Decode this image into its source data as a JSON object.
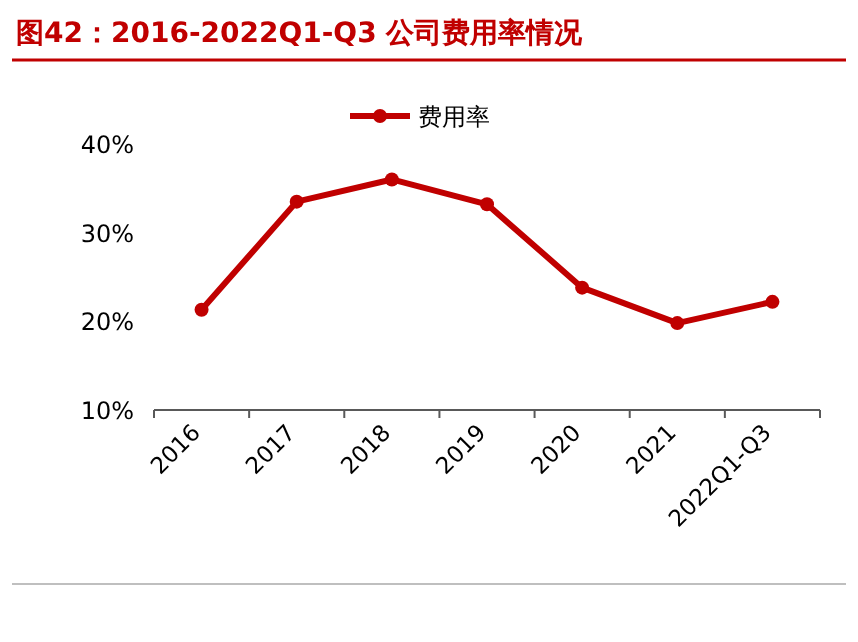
{
  "chart_data": {
    "type": "line",
    "title": "图42：2016-2022Q1-Q3 公司费用率情况",
    "categories": [
      "2016",
      "2017",
      "2018",
      "2019",
      "2020",
      "2021",
      "2022Q1-Q3"
    ],
    "series": [
      {
        "name": "费用率",
        "color": "#c00000",
        "values": [
          21.3,
          33.5,
          36.0,
          33.2,
          23.8,
          19.8,
          22.2
        ]
      }
    ],
    "ylim": [
      10,
      40
    ],
    "yticks": [
      {
        "value": 10,
        "label": "10%"
      },
      {
        "value": 20,
        "label": "20%"
      },
      {
        "value": 30,
        "label": "30%"
      },
      {
        "value": 40,
        "label": "40%"
      }
    ],
    "legend": "top",
    "marker": "circle",
    "line_style": "solid"
  }
}
